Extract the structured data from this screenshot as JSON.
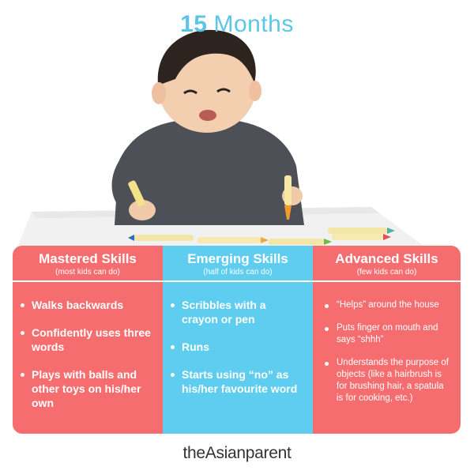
{
  "header": {
    "title_number": "15",
    "title_word": "Months"
  },
  "columns": [
    {
      "heading": "Mastered Skills",
      "subheading": "(most kids can do)",
      "items": [
        "Walks backwards",
        "Confidently uses three words",
        "Plays with balls and other toys on his/her own"
      ]
    },
    {
      "heading": "Emerging Skills",
      "subheading": "(half of kids can do)",
      "items": [
        "Scribbles with a crayon or pen",
        "Runs",
        "Starts using “no” as his/her favourite word"
      ]
    },
    {
      "heading": "Advanced Skills",
      "subheading": "(few kids can do)",
      "items": [
        "“Helps” around the house",
        "Puts finger on mouth and says “shhh”",
        "Understands the purpose of objects (like a hairbrush is for brushing hair, a spatula is for cooking, etc.)"
      ]
    }
  ],
  "brand": {
    "name": "theAsianparent"
  },
  "colors": {
    "title": "#5cc6ea",
    "coral": "#f56d6f",
    "sky": "#5fcdef"
  }
}
